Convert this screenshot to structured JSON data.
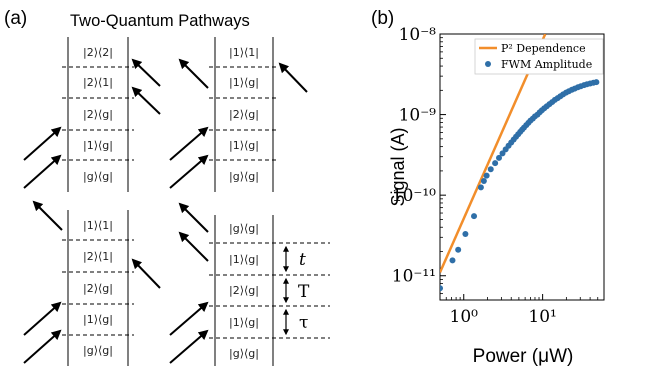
{
  "panel_a": {
    "label": "(a)",
    "title": "Two-Quantum Pathways",
    "diagrams": [
      {
        "levels": [
          "|2⟩⟨2|",
          "|2⟩⟨1|",
          "|2⟩⟨g|",
          "|1⟩⟨g|",
          "|g⟩⟨g|"
        ]
      },
      {
        "levels": [
          "|1⟩⟨1|",
          "|1⟩⟨g|",
          "|2⟩⟨g|",
          "|1⟩⟨g|",
          "|g⟩⟨g|"
        ]
      },
      {
        "levels": [
          "|1⟩⟨1|",
          "|2⟩⟨1|",
          "|2⟩⟨g|",
          "|1⟩⟨g|",
          "|g⟩⟨g|"
        ]
      },
      {
        "levels": [
          "|g⟩⟨g|",
          "|1⟩⟨g|",
          "|2⟩⟨g|",
          "|1⟩⟨g|",
          "|g⟩⟨g|"
        ]
      }
    ],
    "time_labels": [
      "t",
      "T",
      "τ"
    ]
  },
  "panel_b": {
    "label": "(b)"
  },
  "chart_data": {
    "type": "scatter",
    "xlabel": "Power (μW)",
    "ylabel": "Signal (A)",
    "xscale": "log",
    "yscale": "log",
    "xlim": [
      0.5,
      60
    ],
    "ylim": [
      5e-12,
      1e-08
    ],
    "x_ticks": [
      {
        "value": 1,
        "label": "10⁰"
      },
      {
        "value": 10,
        "label": "10¹"
      }
    ],
    "y_ticks": [
      {
        "value": 1e-08,
        "label": "10⁻⁸"
      },
      {
        "value": 1e-09,
        "label": "10⁻⁹"
      },
      {
        "value": 1e-10,
        "label": "10⁻¹⁰"
      },
      {
        "value": 1e-11,
        "label": "10⁻¹¹"
      }
    ],
    "legend_position": "top-right",
    "series": [
      {
        "name": "P² Dependence",
        "kind": "line",
        "color": "#f28e2b",
        "x": [
          0.5,
          10.8
        ],
        "y": [
          1.1e-11,
          1e-08
        ]
      },
      {
        "name": "FWM Amplitude",
        "kind": "scatter",
        "color": "#2f6fa8",
        "x": [
          0.5,
          0.72,
          0.85,
          1.05,
          1.35,
          1.65,
          1.8,
          1.95,
          2.2,
          2.5,
          2.8,
          3.1,
          3.4,
          3.7,
          4.0,
          4.3,
          4.6,
          4.9,
          5.2,
          5.5,
          5.8,
          6.2,
          6.6,
          7.0,
          7.5,
          8.0,
          8.6,
          9.2,
          9.8,
          10.5,
          11.3,
          12.2,
          13.2,
          14.3,
          15.5,
          16.8,
          18.2,
          19.8,
          21.5,
          23.5,
          25.5,
          28,
          30.5,
          33.5,
          36.5,
          40,
          44,
          48
        ],
        "y": [
          7e-12,
          1.55e-11,
          2.1e-11,
          3.3e-11,
          5.5e-11,
          1.25e-10,
          1.5e-10,
          1.75e-10,
          2.1e-10,
          2.5e-10,
          2.9e-10,
          3.3e-10,
          3.7e-10,
          4.1e-10,
          4.5e-10,
          4.9e-10,
          5.3e-10,
          5.7e-10,
          6.1e-10,
          6.5e-10,
          6.9e-10,
          7.4e-10,
          7.9e-10,
          8.4e-10,
          8.9e-10,
          9.5e-10,
          1e-09,
          1.07e-09,
          1.13e-09,
          1.2e-09,
          1.27e-09,
          1.35e-09,
          1.43e-09,
          1.52e-09,
          1.6e-09,
          1.69e-09,
          1.78e-09,
          1.87e-09,
          1.95e-09,
          2.03e-09,
          2.1e-09,
          2.18e-09,
          2.25e-09,
          2.32e-09,
          2.38e-09,
          2.43e-09,
          2.48e-09,
          2.53e-09
        ]
      }
    ]
  }
}
